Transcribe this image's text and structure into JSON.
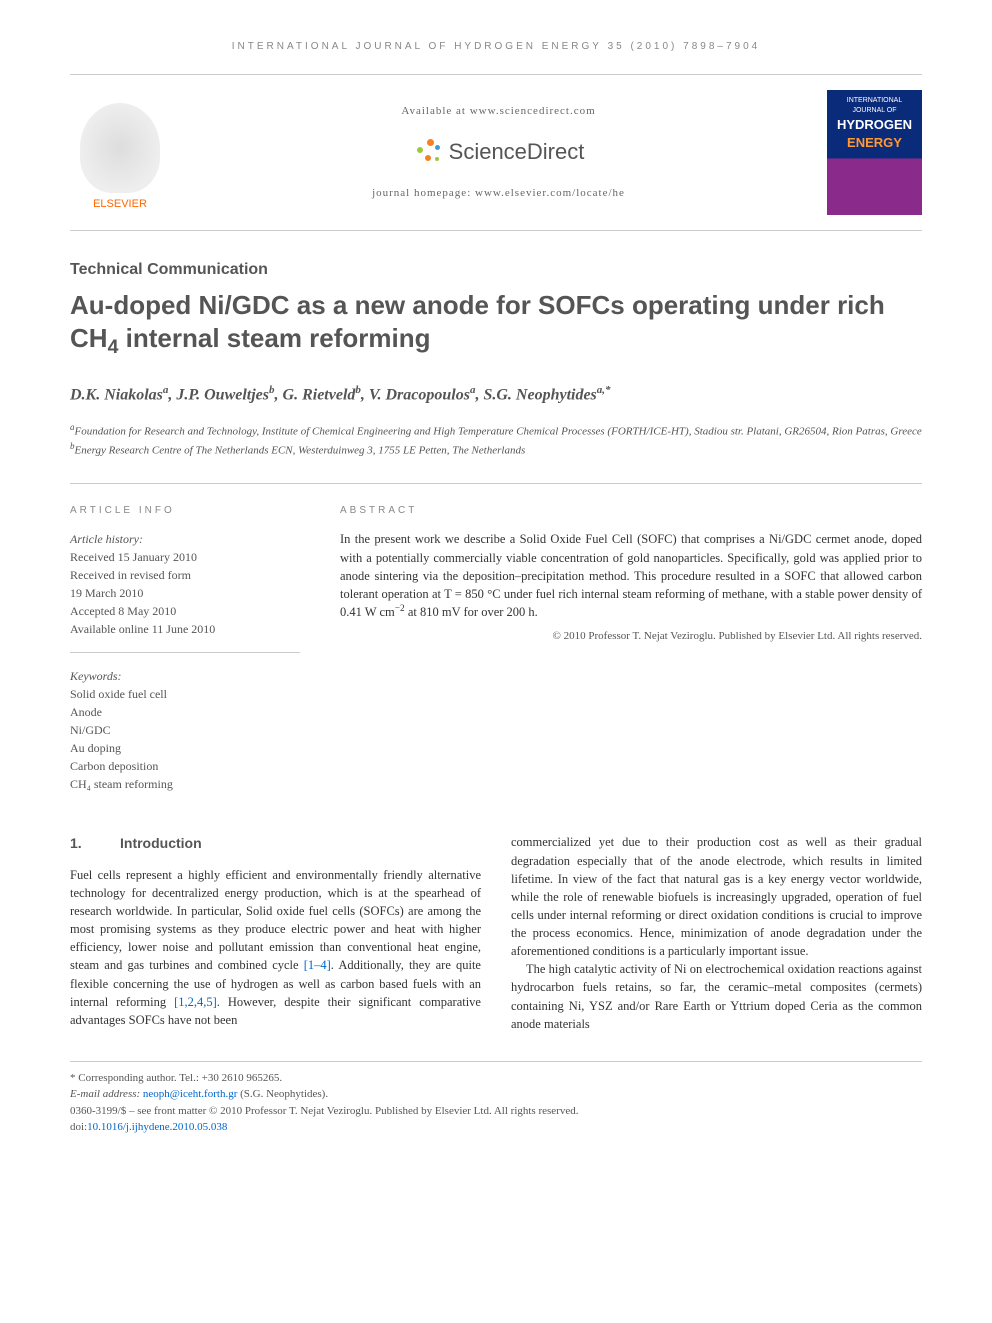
{
  "running_head": "INTERNATIONAL JOURNAL OF HYDROGEN ENERGY 35 (2010) 7898–7904",
  "header": {
    "elsevier": "ELSEVIER",
    "available": "Available at www.sciencedirect.com",
    "sd_brand": "ScienceDirect",
    "homepage": "journal homepage: www.elsevier.com/locate/he",
    "cover_line1": "INTERNATIONAL JOURNAL OF",
    "cover_line2": "HYDROGEN",
    "cover_line3": "ENERGY"
  },
  "article_type": "Technical Communication",
  "title_html": "Au-doped Ni/GDC as a new anode for SOFCs operating under rich CH<sub>4</sub> internal steam reforming",
  "authors_html": "D.K. Niakolas<sup>a</sup>, J.P. Ouweltjes<sup>b</sup>, G. Rietveld<sup>b</sup>, V. Dracopoulos<sup>a</sup>, S.G. Neophytides<sup>a,*</sup>",
  "affiliations": [
    {
      "sup": "a",
      "text": "Foundation for Research and Technology, Institute of Chemical Engineering and High Temperature Chemical Processes (FORTH/ICE-HT), Stadiou str. Platani, GR26504, Rion Patras, Greece"
    },
    {
      "sup": "b",
      "text": "Energy Research Centre of The Netherlands ECN, Westerduinweg 3, 1755 LE Petten, The Netherlands"
    }
  ],
  "info": {
    "heading": "ARTICLE INFO",
    "history_label": "Article history:",
    "history": [
      "Received 15 January 2010",
      "Received in revised form",
      "19 March 2010",
      "Accepted 8 May 2010",
      "Available online 11 June 2010"
    ],
    "keywords_label": "Keywords:",
    "keywords": [
      "Solid oxide fuel cell",
      "Anode",
      "Ni/GDC",
      "Au doping",
      "Carbon deposition",
      "CH₄ steam reforming"
    ]
  },
  "abstract": {
    "heading": "ABSTRACT",
    "text_html": "In the present work we describe a Solid Oxide Fuel Cell (SOFC) that comprises a Ni/GDC cermet anode, doped with a potentially commercially viable concentration of gold nanoparticles. Specifically, gold was applied prior to anode sintering via the deposition–precipitation method. This procedure resulted in a SOFC that allowed carbon tolerant operation at T = 850 °C under fuel rich internal steam reforming of methane, with a stable power density of 0.41 W cm<sup>−2</sup> at 810 mV for over 200 h.",
    "copyright": "© 2010 Professor T. Nejat Veziroglu. Published by Elsevier Ltd. All rights reserved."
  },
  "section": {
    "num": "1.",
    "title": "Introduction"
  },
  "body": {
    "col1_p1_html": "Fuel cells represent a highly efficient and environmentally friendly alternative technology for decentralized energy production, which is at the spearhead of research worldwide. In particular, Solid oxide fuel cells (SOFCs) are among the most promising systems as they produce electric power and heat with higher efficiency, lower noise and pollutant emission than conventional heat engine, steam and gas turbines and combined cycle <span class=\"ref-link\">[1–4]</span>. Additionally, they are quite flexible concerning the use of hydrogen as well as carbon based fuels with an internal reforming <span class=\"ref-link\">[1,2,4,5]</span>. However, despite their significant comparative advantages SOFCs have not been",
    "col2_p1_html": "commercialized yet due to their production cost as well as their gradual degradation especially that of the anode electrode, which results in limited lifetime. In view of the fact that natural gas is a key energy vector worldwide, while the role of renewable biofuels is increasingly upgraded, operation of fuel cells under internal reforming or direct oxidation conditions is crucial to improve the process economics. Hence, minimization of anode degradation under the aforementioned conditions is a particularly important issue.",
    "col2_p2_html": "The high catalytic activity of Ni on electrochemical oxidation reactions against hydrocarbon fuels retains, so far, the ceramic–metal composites (cermets) containing Ni, YSZ and/or Rare Earth or Yttrium doped Ceria as the common anode materials"
  },
  "footer": {
    "corr_label": "* Corresponding author.",
    "corr_tel": "Tel.: +30 2610 965265.",
    "email_label": "E-mail address:",
    "email": "neoph@iceht.forth.gr",
    "email_name": "(S.G. Neophytides).",
    "front_matter": "0360-3199/$ – see front matter © 2010 Professor T. Nejat Veziroglu. Published by Elsevier Ltd. All rights reserved.",
    "doi_label": "doi:",
    "doi": "10.1016/j.ijhydene.2010.05.038"
  },
  "colors": {
    "text_body": "#333333",
    "text_muted": "#555555",
    "text_light": "#888888",
    "link": "#0066cc",
    "elsevier_orange": "#ff6600",
    "energy_orange": "#ff9933",
    "cover_blue": "#0a2a7a",
    "cover_purple": "#8a2a8a",
    "border": "#cccccc",
    "sd_orange": "#f58220",
    "sd_green": "#9aca3c",
    "sd_blue": "#3b9cd9"
  },
  "typography": {
    "running_head_size": 10,
    "title_size": 26,
    "article_type_size": 16,
    "authors_size": 16,
    "body_size": 12.5,
    "affil_size": 11,
    "footer_size": 11
  }
}
